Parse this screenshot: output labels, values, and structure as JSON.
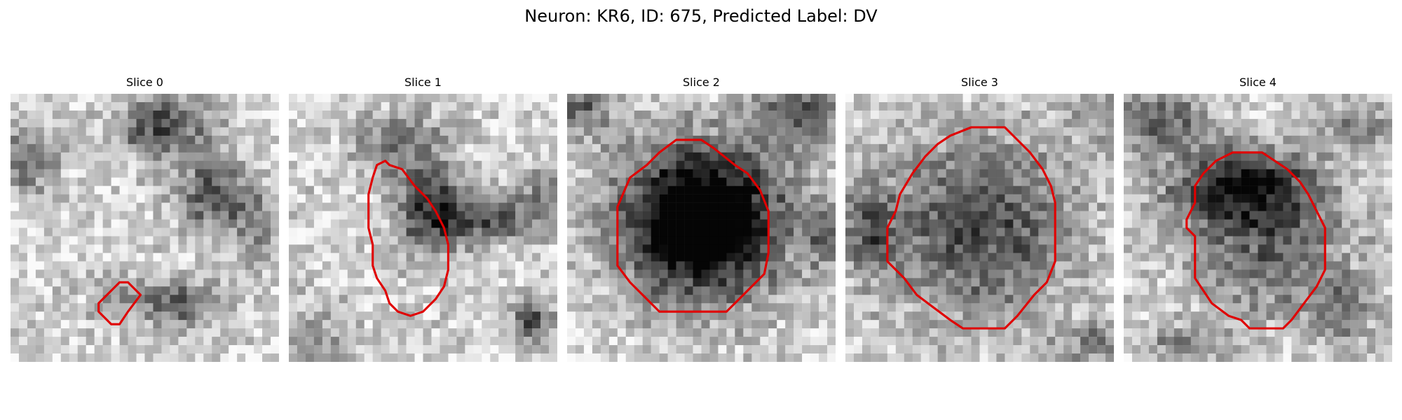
{
  "figure": {
    "title": "Neuron: KR6, ID: 675, Predicted Label: DV",
    "neuron": "KR6",
    "id": 675,
    "predicted_label": "DV",
    "contour_color": "#e00000"
  },
  "slices": [
    {
      "title": "Slice 0"
    },
    {
      "title": "Slice 1"
    },
    {
      "title": "Slice 2"
    },
    {
      "title": "Slice 3"
    },
    {
      "title": "Slice 4"
    }
  ]
}
